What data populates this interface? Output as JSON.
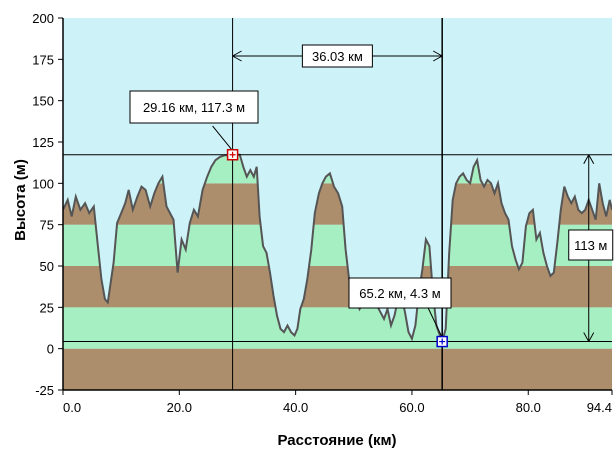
{
  "chart_data": {
    "type": "area",
    "title": "",
    "xlabel": "Расстояние  (км)",
    "ylabel": "Высота (м)",
    "xlim": [
      0,
      94.4
    ],
    "ylim": [
      -25,
      200
    ],
    "x_ticks": [
      "0.0",
      "20.0",
      "40.0",
      "60.0",
      "80.0",
      "94.4"
    ],
    "x_tick_values": [
      0,
      20,
      40,
      60,
      80,
      94.4
    ],
    "y_ticks": [
      "200",
      "175",
      "150",
      "125",
      "100",
      "75",
      "50",
      "25",
      "0",
      "-25"
    ],
    "y_tick_values": [
      200,
      175,
      150,
      125,
      100,
      75,
      50,
      25,
      0,
      -25
    ],
    "colors": {
      "sky": "#cdf3f8",
      "band_brown": "#ad8e6c",
      "band_green": "#a6efc2",
      "profile_line": "#555555"
    },
    "series": [
      {
        "x": [
          0,
          0.8,
          1.5,
          2.2,
          3,
          3.8,
          4.5,
          5.3,
          6,
          6.6,
          7.2,
          7.7,
          8.2,
          8.7,
          9.3,
          10,
          10.7,
          11.3,
          12,
          12.8,
          13.5,
          14.2,
          15,
          15.7,
          16.4,
          17.1,
          17.8,
          18.4,
          19,
          19.7,
          20.4,
          21.1,
          21.8,
          22.5,
          23.2,
          24,
          24.8,
          25.5,
          26.2,
          27,
          27.8,
          28.5,
          29.16,
          29.8,
          30.4,
          31,
          31.6,
          32.2,
          32.8,
          33.3,
          33.8,
          34.4,
          35,
          35.6,
          36.2,
          36.8,
          37.4,
          38,
          38.6,
          39.2,
          39.8,
          40.3,
          40.8,
          41.4,
          42,
          42.7,
          43.3,
          44,
          44.6,
          45.2,
          45.9,
          46.6,
          47.3,
          48,
          48.6,
          49.2,
          49.8,
          50.4,
          51,
          51.6,
          52.2,
          52.8,
          53.4,
          54,
          54.6,
          55.2,
          55.8,
          56.4,
          57,
          57.6,
          58.2,
          58.8,
          59.4,
          60,
          60.6,
          61.2,
          61.8,
          62.4,
          63,
          63.6,
          64.2,
          64.8,
          65.2,
          65.8,
          66.4,
          67,
          67.6,
          68.2,
          68.8,
          69.4,
          70,
          70.6,
          71.2,
          71.8,
          72.4,
          73,
          73.6,
          74.2,
          74.8,
          75.4,
          76,
          76.6,
          77.2,
          77.8,
          78.4,
          79,
          79.6,
          80.2,
          80.8,
          81.4,
          82,
          82.6,
          83.2,
          83.8,
          84.4,
          85,
          85.6,
          86.2,
          86.8,
          87.4,
          88,
          88.6,
          89.2,
          89.8,
          90.4,
          91,
          91.6,
          92.2,
          92.8,
          93.4,
          94,
          94.4
        ],
        "values": [
          84,
          90,
          80,
          92,
          84,
          88,
          82,
          86,
          62,
          42,
          30,
          28,
          40,
          52,
          76,
          82,
          88,
          96,
          84,
          92,
          98,
          96,
          86,
          94,
          100,
          104,
          86,
          82,
          78,
          46,
          66,
          60,
          76,
          84,
          80,
          96,
          104,
          110,
          114,
          116,
          117,
          117,
          117.3,
          117.3,
          117.3,
          110,
          104,
          108,
          104,
          110,
          80,
          62,
          58,
          46,
          32,
          20,
          12,
          10,
          14,
          10,
          8,
          12,
          24,
          30,
          42,
          60,
          82,
          94,
          100,
          104,
          106,
          98,
          94,
          86,
          60,
          42,
          34,
          30,
          24,
          28,
          30,
          30,
          32,
          26,
          22,
          18,
          24,
          14,
          20,
          30,
          32,
          22,
          10,
          6,
          14,
          34,
          48,
          66,
          62,
          34,
          14,
          8,
          4.3,
          12,
          58,
          90,
          100,
          104,
          106,
          102,
          100,
          110,
          114,
          102,
          98,
          102,
          100,
          94,
          100,
          88,
          82,
          78,
          62,
          54,
          48,
          52,
          74,
          82,
          84,
          66,
          70,
          58,
          50,
          44,
          46,
          64,
          84,
          98,
          92,
          88,
          92,
          84,
          82,
          84,
          90,
          84,
          78,
          100,
          88,
          80,
          90,
          84
        ]
      }
    ],
    "annotations": {
      "distance_label": "36.03 км",
      "point_a": {
        "x": 29.16,
        "y": 117.3,
        "label": "29.16 км, 117.3 м"
      },
      "point_b": {
        "x": 65.2,
        "y": 4.3,
        "label": "65.2 км, 4.3 м"
      },
      "height_label": "113 м",
      "height_span_x": 90.4
    }
  }
}
